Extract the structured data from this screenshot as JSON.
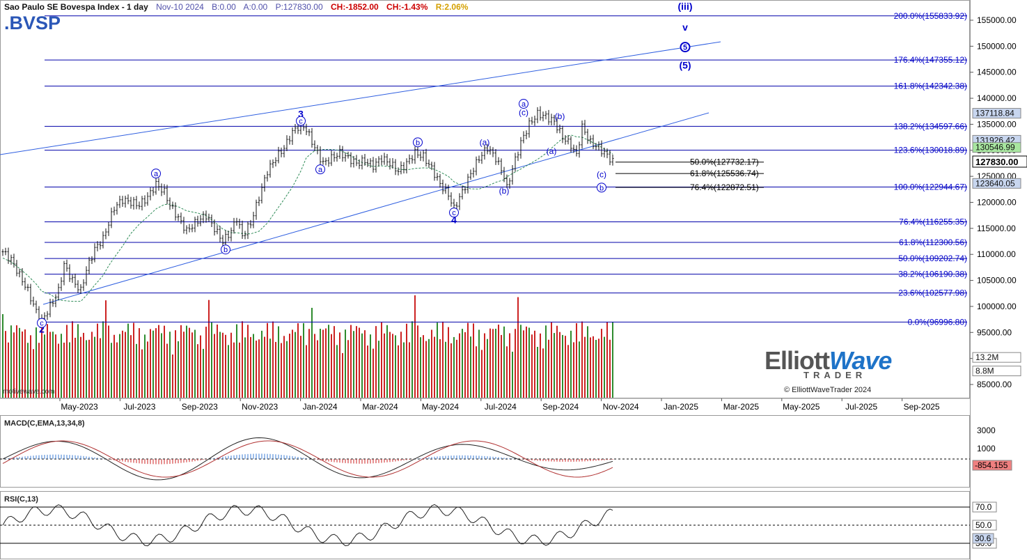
{
  "header": {
    "title": "Sao Paulo SE Bovespa Index - 1 day",
    "date": "Nov-10 2024",
    "bid": "B:0.00",
    "ask": "A:0.00",
    "price": "P:127830.00",
    "change": "CH:-1852.00",
    "change_pct": "CH:-1.43%",
    "range": "R:2.06%"
  },
  "symbol": ".BVSP",
  "watermark": "motivewave.com",
  "logo": {
    "brand_a": "Elliott",
    "brand_b": "Wave",
    "sub": "TRADER",
    "copyright": "© ElliottWaveTrader 2024"
  },
  "colors": {
    "accent": "#0000cc",
    "up": "#2e8b2e",
    "down": "#cc2222",
    "grid": "#c8c8c8"
  },
  "chart_data": {
    "type": "candlestick",
    "title": "Sao Paulo SE Bovespa Index - 1 day",
    "last_price": "127830.00",
    "price_axis": {
      "min": 82000,
      "max": 158000,
      "ticks": [
        "85000.00",
        "90000.00",
        "95000.00",
        "100000.00",
        "105000.00",
        "110000.00",
        "115000.00",
        "120000.00",
        "125000.00",
        "130000.00",
        "135000.00",
        "140000.00",
        "145000.00",
        "150000.00",
        "155000.00"
      ]
    },
    "time_axis": [
      "May-2023",
      "Jul-2023",
      "Sep-2023",
      "Nov-2023",
      "Jan-2024",
      "Mar-2024",
      "May-2024",
      "Jul-2024",
      "Sep-2024",
      "Nov-2024",
      "Jan-2025",
      "Mar-2025",
      "May-2025",
      "Jul-2025",
      "Sep-2025"
    ],
    "price_path": [
      [
        0,
        110500
      ],
      [
        3,
        109000
      ],
      [
        6,
        106000
      ],
      [
        9,
        103000
      ],
      [
        12,
        99000
      ],
      [
        14,
        97200
      ],
      [
        17,
        100000
      ],
      [
        20,
        103000
      ],
      [
        22,
        108000
      ],
      [
        25,
        105000
      ],
      [
        28,
        103000
      ],
      [
        30,
        107000
      ],
      [
        33,
        111000
      ],
      [
        36,
        113000
      ],
      [
        38,
        116000
      ],
      [
        40,
        119000
      ],
      [
        43,
        120500
      ],
      [
        46,
        120000
      ],
      [
        49,
        119500
      ],
      [
        52,
        121000
      ],
      [
        55,
        123500
      ],
      [
        58,
        122000
      ],
      [
        60,
        119500
      ],
      [
        63,
        117000
      ],
      [
        66,
        114500
      ],
      [
        70,
        116500
      ],
      [
        73,
        117500
      ],
      [
        76,
        115000
      ],
      [
        79,
        112500
      ],
      [
        82,
        114500
      ],
      [
        84,
        117000
      ],
      [
        86,
        113500
      ],
      [
        89,
        116000
      ],
      [
        92,
        121000
      ],
      [
        95,
        126000
      ],
      [
        98,
        128500
      ],
      [
        101,
        130500
      ],
      [
        104,
        133500
      ],
      [
        107,
        135000
      ],
      [
        109,
        134000
      ],
      [
        112,
        130500
      ],
      [
        115,
        127500
      ],
      [
        118,
        128500
      ],
      [
        121,
        129500
      ],
      [
        124,
        128500
      ],
      [
        127,
        127500
      ],
      [
        130,
        128000
      ],
      [
        133,
        127000
      ],
      [
        136,
        128500
      ],
      [
        139,
        127500
      ],
      [
        142,
        126000
      ],
      [
        145,
        127500
      ],
      [
        148,
        129500
      ],
      [
        151,
        128800
      ],
      [
        154,
        126500
      ],
      [
        157,
        123500
      ],
      [
        160,
        121500
      ],
      [
        162,
        118800
      ],
      [
        165,
        122000
      ],
      [
        168,
        125500
      ],
      [
        171,
        128500
      ],
      [
        174,
        130500
      ],
      [
        177,
        128500
      ],
      [
        180,
        125000
      ],
      [
        181,
        122700
      ],
      [
        183,
        126500
      ],
      [
        186,
        131500
      ],
      [
        189,
        135000
      ],
      [
        192,
        137000
      ],
      [
        195,
        136500
      ],
      [
        198,
        135500
      ],
      [
        201,
        132500
      ],
      [
        204,
        131000
      ],
      [
        206,
        129000
      ],
      [
        208,
        134500
      ],
      [
        211,
        131500
      ],
      [
        214,
        130500
      ],
      [
        217,
        129000
      ],
      [
        219,
        127830
      ]
    ],
    "fib_levels": [
      {
        "label": "200.0%(155833.92)",
        "value": 155833.92
      },
      {
        "label": "176.4%(147355.12)",
        "value": 147355.12
      },
      {
        "label": "161.8%(142342.38)",
        "value": 142342.38
      },
      {
        "label": "138.2%(134597.66)",
        "value": 134597.66
      },
      {
        "label": "123.6%(130018.89)",
        "value": 130018.89
      },
      {
        "label": "100.0%(122944.67)",
        "value": 122944.67
      },
      {
        "label": "76.4%(116255.35)",
        "value": 116255.35
      },
      {
        "label": "61.8%(112300.56)",
        "value": 112300.56
      },
      {
        "label": "50.0%(109202.74)",
        "value": 109202.74
      },
      {
        "label": "38.2%(106190.38)",
        "value": 106190.38
      },
      {
        "label": "23.6%(102577.98)",
        "value": 102577.98
      },
      {
        "label": "0.0%(96996.80)",
        "value": 96996.8
      }
    ],
    "retracements": [
      {
        "label": "50.0%(127732.17)",
        "value": 127732.17
      },
      {
        "label": "61.8%(125536.74)",
        "value": 125536.74
      },
      {
        "label": "76.4%(122872.51)",
        "value": 122872.51
      }
    ],
    "price_tags": [
      {
        "label": "137118.84",
        "value": 137118.84,
        "bg": "#c8d6ef"
      },
      {
        "label": "131926.42",
        "value": 131926.42,
        "bg": "#c8d6ef"
      },
      {
        "label": "130546.99",
        "value": 130546.99,
        "bg": "#a8e6a0"
      },
      {
        "label": "123640.05",
        "value": 123640.05,
        "bg": "#c8d6ef"
      },
      {
        "label": "13.2M",
        "value": 90200,
        "bg": "#ffffff"
      },
      {
        "label": "8.8M",
        "value": 87600,
        "bg": "#ffffff"
      }
    ],
    "wave_labels": [
      {
        "text": "3",
        "i": 107,
        "v": 136300,
        "bold": true
      },
      {
        "text": "c",
        "i": 107,
        "v": 135100,
        "circle": true
      },
      {
        "text": "2",
        "i": 14,
        "v": 95000,
        "bold": true
      },
      {
        "text": "c",
        "i": 14,
        "v": 96300,
        "circle": true
      },
      {
        "text": "a",
        "i": 55,
        "v": 125000,
        "circle": true
      },
      {
        "text": "b",
        "i": 80,
        "v": 110400,
        "circle": true
      },
      {
        "text": "a",
        "i": 114,
        "v": 125800,
        "circle": true
      },
      {
        "text": "b",
        "i": 149,
        "v": 131000,
        "circle": true
      },
      {
        "text": "4",
        "i": 162,
        "v": 116000,
        "bold": true
      },
      {
        "text": "c",
        "i": 162,
        "v": 117500,
        "circle": true
      },
      {
        "text": "(a)",
        "i": 173,
        "v": 131000
      },
      {
        "text": "(b)",
        "i": 180,
        "v": 121700
      },
      {
        "text": "(c)",
        "i": 187,
        "v": 136700
      },
      {
        "text": "a",
        "i": 187,
        "v": 138400,
        "circle": true
      },
      {
        "text": "(b)",
        "i": 200,
        "v": 136000
      },
      {
        "text": "(a)",
        "i": 197,
        "v": 129300
      },
      {
        "text": "(c)",
        "i": 215,
        "v": 124800
      },
      {
        "text": "b",
        "i": 215,
        "v": 122300,
        "circle": true
      },
      {
        "text": "(iii)",
        "i": 245,
        "v": 157000,
        "bold": true
      },
      {
        "text": "v",
        "i": 245,
        "v": 153000,
        "bold": true
      },
      {
        "text": "5",
        "i": 245,
        "v": 149300,
        "circle": true,
        "bold": true
      },
      {
        "text": "(5)",
        "i": 245,
        "v": 145700,
        "bold": true
      }
    ],
    "macd": {
      "title": "MACD(C,EMA,13,34,8)",
      "ticks": [
        "3000",
        "1000"
      ],
      "value": "-854.155"
    },
    "rsi": {
      "title": "RSI(C,13)",
      "ticks": [
        "70.0",
        "50.0",
        "30.0"
      ],
      "value": "30.6"
    }
  }
}
